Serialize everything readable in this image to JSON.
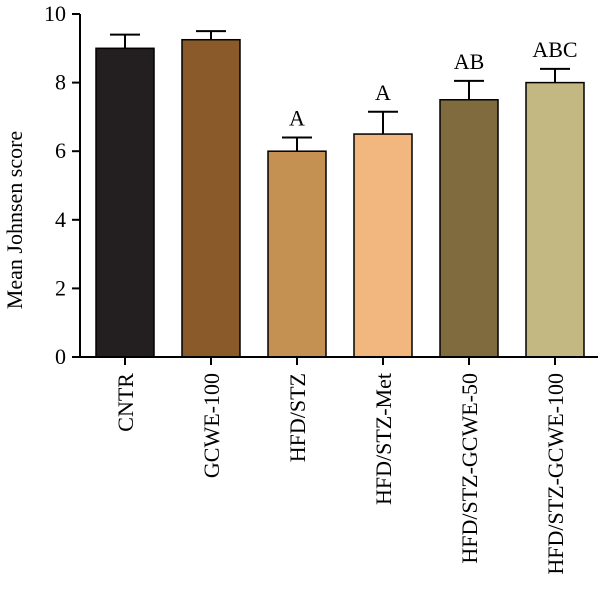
{
  "chart_data": {
    "type": "bar",
    "ylabel": "Mean Johnsen score",
    "ylim": [
      0,
      10
    ],
    "yticks": [
      0,
      2,
      4,
      6,
      8,
      10
    ],
    "categories": [
      "CNTR",
      "GCWE-100",
      "HFD/STZ",
      "HFD/STZ-Met",
      "HFD/STZ-GCWE-50",
      "HFD/STZ-GCWE-100"
    ],
    "values": [
      9.0,
      9.25,
      6.0,
      6.5,
      7.5,
      8.0
    ],
    "errors": [
      0.4,
      0.25,
      0.4,
      0.65,
      0.55,
      0.4
    ],
    "annotations": [
      "",
      "",
      "A",
      "A",
      "AB",
      "ABC"
    ],
    "colors": [
      "#231f20",
      "#8b5a2b",
      "#c49152",
      "#f2b77e",
      "#7f6b3d",
      "#c4b882"
    ]
  }
}
